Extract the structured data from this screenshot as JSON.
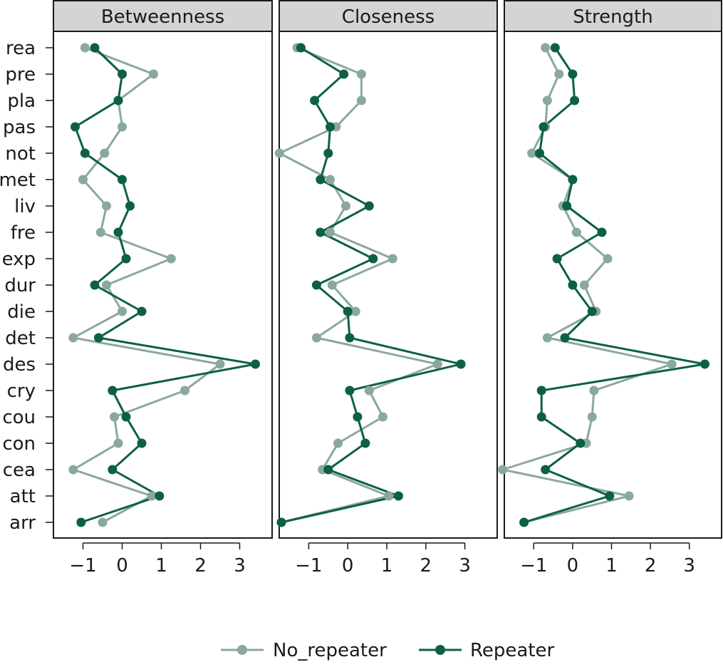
{
  "chart_data": {
    "type": "line",
    "orientation": "horizontal-profile",
    "categories": [
      "rea",
      "pre",
      "pla",
      "pas",
      "not",
      "met",
      "liv",
      "fre",
      "exp",
      "dur",
      "die",
      "det",
      "des",
      "cry",
      "cou",
      "con",
      "cea",
      "att",
      "arr"
    ],
    "x_ticks": [
      -1,
      0,
      1,
      2,
      3
    ],
    "xlim": [
      -1.5,
      3.5
    ],
    "panels": [
      {
        "title": "Betweenness",
        "series": [
          {
            "name": "No_repeater",
            "values": [
              -0.95,
              0.8,
              -0.1,
              0.0,
              -0.45,
              -1.0,
              -0.4,
              -0.55,
              1.25,
              -0.4,
              0.0,
              -1.25,
              2.5,
              1.6,
              -0.2,
              -0.1,
              -1.25,
              0.75,
              -0.5
            ]
          },
          {
            "name": "Repeater",
            "values": [
              -0.7,
              0.0,
              -0.1,
              -1.2,
              -0.95,
              0.0,
              0.2,
              -0.1,
              0.1,
              -0.7,
              0.5,
              -0.6,
              3.4,
              -0.25,
              0.1,
              0.5,
              -0.25,
              0.95,
              -1.05
            ]
          }
        ]
      },
      {
        "title": "Closeness",
        "series": [
          {
            "name": "No_repeater",
            "values": [
              -1.3,
              0.35,
              0.35,
              -0.3,
              -1.75,
              -0.45,
              -0.05,
              -0.45,
              1.15,
              -0.4,
              0.2,
              -0.8,
              2.3,
              0.55,
              0.9,
              -0.25,
              -0.65,
              1.05,
              -1.7
            ]
          },
          {
            "name": "Repeater",
            "values": [
              -1.2,
              -0.1,
              -0.85,
              -0.45,
              -0.5,
              -0.7,
              0.55,
              -0.7,
              0.65,
              -0.8,
              0.0,
              0.05,
              2.9,
              0.05,
              0.25,
              0.45,
              -0.5,
              1.3,
              -1.7
            ]
          }
        ]
      },
      {
        "title": "Strength",
        "series": [
          {
            "name": "No_repeater",
            "values": [
              -0.7,
              -0.35,
              -0.65,
              -0.7,
              -1.05,
              0.0,
              -0.25,
              0.1,
              0.9,
              0.3,
              0.6,
              -0.65,
              2.55,
              0.55,
              0.5,
              0.35,
              -1.8,
              1.45,
              -1.25
            ]
          },
          {
            "name": "Repeater",
            "values": [
              -0.45,
              0.0,
              0.05,
              -0.75,
              -0.85,
              0.0,
              -0.15,
              0.75,
              -0.4,
              0.0,
              0.5,
              -0.2,
              3.4,
              -0.8,
              -0.8,
              0.2,
              -0.7,
              0.95,
              -1.25
            ]
          }
        ]
      }
    ],
    "legend": {
      "position": "bottom",
      "items": [
        {
          "name": "No_repeater",
          "color": "#8aa99b"
        },
        {
          "name": "Repeater",
          "color": "#0d6045"
        }
      ]
    },
    "colors": {
      "No_repeater": "#8aa99b",
      "Repeater": "#0d6045",
      "strip": "#d4d4d4",
      "frame": "#1a1a1a"
    },
    "grid": false
  }
}
